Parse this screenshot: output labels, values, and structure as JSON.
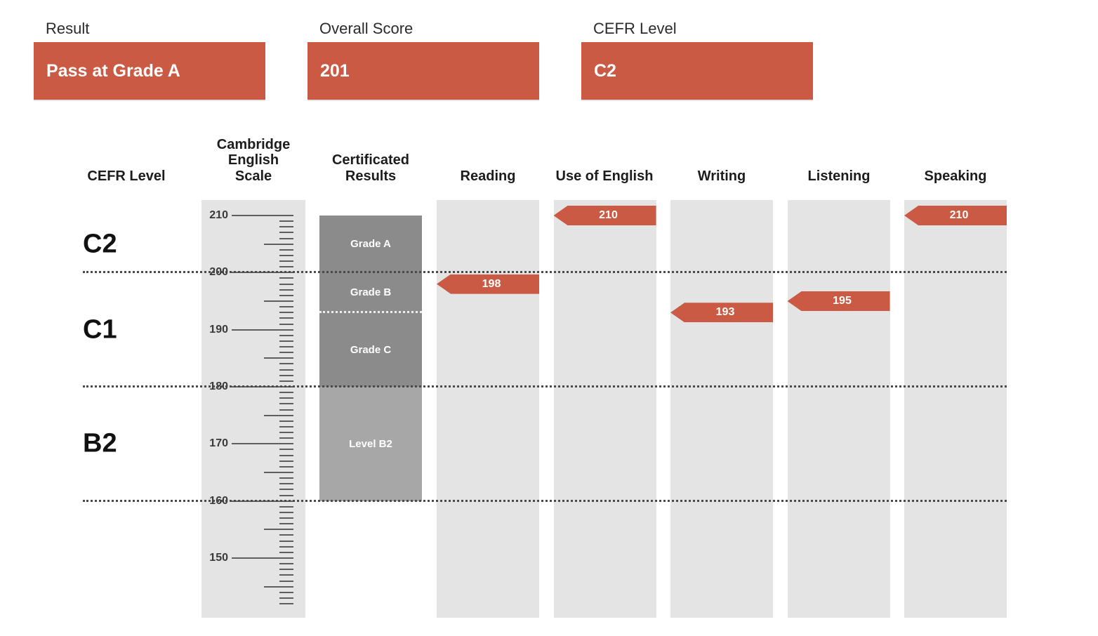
{
  "colors": {
    "accent": "#cb5a44",
    "column_bg": "#e4e4e4",
    "grade_dark": "#8b8b8b",
    "grade_mid": "#a7a7a7",
    "dotted": "#4a4a4a"
  },
  "summary": [
    {
      "label": "Result",
      "value": "Pass at Grade A"
    },
    {
      "label": "Overall Score",
      "value": "201"
    },
    {
      "label": "CEFR Level",
      "value": "C2"
    }
  ],
  "chart_data": {
    "type": "scatter",
    "title": "",
    "ylabel": "Cambridge English Scale",
    "headers": [
      "CEFR Level",
      "Cambridge\nEnglish\nScale",
      "Certificated\nResults",
      "Reading",
      "Use of English",
      "Writing",
      "Listening",
      "Speaking"
    ],
    "categories": [
      "Reading",
      "Use of English",
      "Writing",
      "Listening",
      "Speaking"
    ],
    "values": [
      198,
      210,
      193,
      195,
      210
    ],
    "scale": {
      "min": 142,
      "max": 210,
      "major_ticks": [
        210,
        200,
        190,
        180,
        170,
        160,
        150
      ]
    },
    "cefr_bands": [
      {
        "label": "C2",
        "min": 200,
        "max": 210
      },
      {
        "label": "C1",
        "min": 180,
        "max": 200
      },
      {
        "label": "B2",
        "min": 160,
        "max": 180
      }
    ],
    "certificated_results": [
      {
        "label": "Grade A",
        "min": 200,
        "max": 210,
        "shade": "dark"
      },
      {
        "label": "Grade B",
        "min": 193,
        "max": 200,
        "shade": "dark"
      },
      {
        "label": "Grade C",
        "min": 180,
        "max": 193,
        "shade": "dark"
      },
      {
        "label": "Level B2",
        "min": 160,
        "max": 180,
        "shade": "mid"
      }
    ]
  }
}
